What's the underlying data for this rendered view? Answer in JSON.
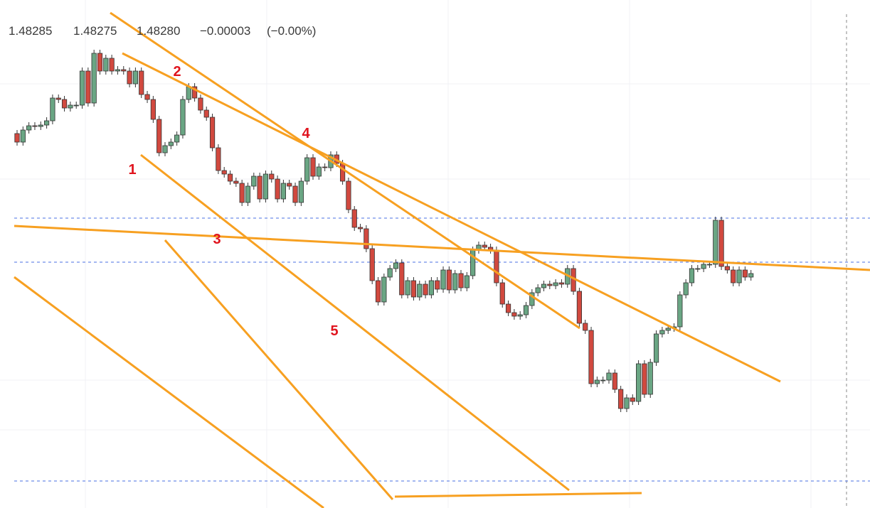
{
  "chart_data": {
    "type": "candlestick",
    "legend_values": [
      "1.48285",
      "1.48275",
      "1.48280",
      "−0.00003",
      "(−0.00%)"
    ],
    "annotations": [
      "1",
      "2",
      "3",
      "4",
      "5"
    ],
    "up_color": "#6aa684",
    "down_color": "#d1493f",
    "ylim": [
      1.4795,
      1.48665
    ],
    "price_lines": [
      1.48358,
      1.48296,
      1.47988
    ],
    "candles": [
      [
        1.48477,
        1.48482,
        1.4846,
        1.48465
      ],
      [
        1.48465,
        1.48487,
        1.4846,
        1.48482
      ],
      [
        1.48482,
        1.48493,
        1.48477,
        1.48488
      ],
      [
        1.48488,
        1.48493,
        1.48482,
        1.48487
      ],
      [
        1.48487,
        1.48494,
        1.48482,
        1.48489
      ],
      [
        1.48489,
        1.485,
        1.48484,
        1.48495
      ],
      [
        1.48495,
        1.48532,
        1.4849,
        1.48527
      ],
      [
        1.48527,
        1.48532,
        1.4852,
        1.48525
      ],
      [
        1.48525,
        1.4853,
        1.48508,
        1.48513
      ],
      [
        1.48513,
        1.48522,
        1.48508,
        1.48517
      ],
      [
        1.48517,
        1.48522,
        1.48512,
        1.48517
      ],
      [
        1.48517,
        1.4857,
        1.48512,
        1.48565
      ],
      [
        1.48565,
        1.4857,
        1.48515,
        1.4852
      ],
      [
        1.4852,
        1.48595,
        1.48515,
        1.4859
      ],
      [
        1.4859,
        1.48595,
        1.4856,
        1.48565
      ],
      [
        1.48565,
        1.48588,
        1.4856,
        1.48583
      ],
      [
        1.48583,
        1.48588,
        1.4856,
        1.48565
      ],
      [
        1.48565,
        1.48572,
        1.4856,
        1.48567
      ],
      [
        1.48567,
        1.48572,
        1.4856,
        1.48565
      ],
      [
        1.48565,
        1.4857,
        1.48542,
        1.48547
      ],
      [
        1.48547,
        1.4857,
        1.48542,
        1.48565
      ],
      [
        1.48565,
        1.4857,
        1.48527,
        1.48532
      ],
      [
        1.48532,
        1.48537,
        1.4852,
        1.48525
      ],
      [
        1.48525,
        1.4853,
        1.48492,
        1.48497
      ],
      [
        1.48497,
        1.48502,
        1.48445,
        1.4845
      ],
      [
        1.4845,
        1.48465,
        1.48445,
        1.4846
      ],
      [
        1.4846,
        1.4847,
        1.48455,
        1.48465
      ],
      [
        1.48465,
        1.4848,
        1.4846,
        1.48475
      ],
      [
        1.48475,
        1.4853,
        1.4847,
        1.48525
      ],
      [
        1.48525,
        1.48548,
        1.4852,
        1.48543
      ],
      [
        1.48543,
        1.48548,
        1.48522,
        1.48527
      ],
      [
        1.48527,
        1.48532,
        1.48505,
        1.4851
      ],
      [
        1.4851,
        1.48515,
        1.48495,
        1.485
      ],
      [
        1.485,
        1.48505,
        1.48452,
        1.48457
      ],
      [
        1.48457,
        1.48462,
        1.4842,
        1.48425
      ],
      [
        1.48425,
        1.4843,
        1.48415,
        1.4842
      ],
      [
        1.4842,
        1.48425,
        1.48405,
        1.4841
      ],
      [
        1.4841,
        1.48415,
        1.48402,
        1.48407
      ],
      [
        1.48407,
        1.48412,
        1.48375,
        1.4838
      ],
      [
        1.4838,
        1.48408,
        1.48375,
        1.48403
      ],
      [
        1.48403,
        1.48422,
        1.48398,
        1.48417
      ],
      [
        1.48417,
        1.48422,
        1.4838,
        1.48385
      ],
      [
        1.48385,
        1.48425,
        1.4838,
        1.4842
      ],
      [
        1.4842,
        1.48425,
        1.48408,
        1.48413
      ],
      [
        1.48413,
        1.48418,
        1.4838,
        1.48385
      ],
      [
        1.48385,
        1.48412,
        1.4838,
        1.48407
      ],
      [
        1.48407,
        1.48412,
        1.48398,
        1.48403
      ],
      [
        1.48403,
        1.48408,
        1.48375,
        1.4838
      ],
      [
        1.4838,
        1.48415,
        1.48375,
        1.4841
      ],
      [
        1.4841,
        1.48448,
        1.48405,
        1.48443
      ],
      [
        1.48443,
        1.48448,
        1.48412,
        1.48417
      ],
      [
        1.48417,
        1.48435,
        1.48412,
        1.4843
      ],
      [
        1.4843,
        1.48435,
        1.48424,
        1.48429
      ],
      [
        1.48429,
        1.48452,
        1.48424,
        1.48447
      ],
      [
        1.48447,
        1.48452,
        1.4843,
        1.48435
      ],
      [
        1.48435,
        1.4844,
        1.48405,
        1.4841
      ],
      [
        1.4841,
        1.48415,
        1.48365,
        1.4837
      ],
      [
        1.4837,
        1.48375,
        1.4834,
        1.48345
      ],
      [
        1.48345,
        1.4835,
        1.48338,
        1.48343
      ],
      [
        1.48343,
        1.48348,
        1.4831,
        1.48315
      ],
      [
        1.48315,
        1.4832,
        1.48265,
        1.4827
      ],
      [
        1.4827,
        1.48275,
        1.48235,
        1.4824
      ],
      [
        1.4824,
        1.4828,
        1.48235,
        1.48275
      ],
      [
        1.48275,
        1.48292,
        1.4827,
        1.48287
      ],
      [
        1.48287,
        1.483,
        1.48282,
        1.48295
      ],
      [
        1.48295,
        1.483,
        1.48245,
        1.4825
      ],
      [
        1.4825,
        1.48275,
        1.48245,
        1.4827
      ],
      [
        1.4827,
        1.48275,
        1.48242,
        1.48247
      ],
      [
        1.48247,
        1.4827,
        1.48242,
        1.48265
      ],
      [
        1.48265,
        1.4827,
        1.48245,
        1.4825
      ],
      [
        1.4825,
        1.48275,
        1.48245,
        1.4827
      ],
      [
        1.4827,
        1.48275,
        1.48253,
        1.48258
      ],
      [
        1.48258,
        1.4829,
        1.48253,
        1.48285
      ],
      [
        1.48285,
        1.4829,
        1.48252,
        1.48257
      ],
      [
        1.48257,
        1.48285,
        1.48252,
        1.4828
      ],
      [
        1.4828,
        1.48285,
        1.48255,
        1.4826
      ],
      [
        1.4826,
        1.48282,
        1.48255,
        1.48277
      ],
      [
        1.48277,
        1.48318,
        1.48272,
        1.48313
      ],
      [
        1.48313,
        1.48325,
        1.48308,
        1.4832
      ],
      [
        1.4832,
        1.48325,
        1.48312,
        1.48317
      ],
      [
        1.48317,
        1.48322,
        1.48308,
        1.48313
      ],
      [
        1.48313,
        1.48318,
        1.48262,
        1.48267
      ],
      [
        1.48267,
        1.48272,
        1.48232,
        1.48237
      ],
      [
        1.48237,
        1.48242,
        1.4822,
        1.48225
      ],
      [
        1.48225,
        1.4823,
        1.48215,
        1.4822
      ],
      [
        1.4822,
        1.48227,
        1.48215,
        1.48222
      ],
      [
        1.48222,
        1.4824,
        1.48217,
        1.48235
      ],
      [
        1.48235,
        1.48258,
        1.4823,
        1.48253
      ],
      [
        1.48253,
        1.48265,
        1.48248,
        1.4826
      ],
      [
        1.4826,
        1.4827,
        1.48255,
        1.48265
      ],
      [
        1.48265,
        1.4827,
        1.48258,
        1.48263
      ],
      [
        1.48263,
        1.48272,
        1.48258,
        1.48267
      ],
      [
        1.48267,
        1.48272,
        1.4826,
        1.48265
      ],
      [
        1.48265,
        1.48292,
        1.4826,
        1.48287
      ],
      [
        1.48287,
        1.48292,
        1.4825,
        1.48255
      ],
      [
        1.48255,
        1.4826,
        1.48205,
        1.4821
      ],
      [
        1.4821,
        1.48215,
        1.48195,
        1.482
      ],
      [
        1.482,
        1.48205,
        1.4812,
        1.48125
      ],
      [
        1.48125,
        1.48135,
        1.4812,
        1.4813
      ],
      [
        1.4813,
        1.48135,
        1.48125,
        1.4813
      ],
      [
        1.4813,
        1.48145,
        1.48125,
        1.4814
      ],
      [
        1.4814,
        1.48145,
        1.48112,
        1.48117
      ],
      [
        1.48117,
        1.48122,
        1.48085,
        1.4809
      ],
      [
        1.4809,
        1.4811,
        1.48085,
        1.48105
      ],
      [
        1.48105,
        1.4811,
        1.48095,
        1.481
      ],
      [
        1.481,
        1.48158,
        1.48095,
        1.48153
      ],
      [
        1.48153,
        1.48158,
        1.48105,
        1.4811
      ],
      [
        1.4811,
        1.4816,
        1.48105,
        1.48155
      ],
      [
        1.48155,
        1.482,
        1.4815,
        1.48195
      ],
      [
        1.48195,
        1.48205,
        1.4819,
        1.482
      ],
      [
        1.482,
        1.48208,
        1.48195,
        1.48203
      ],
      [
        1.48203,
        1.4821,
        1.48198,
        1.48205
      ],
      [
        1.48205,
        1.48255,
        1.482,
        1.4825
      ],
      [
        1.4825,
        1.48272,
        1.48245,
        1.48267
      ],
      [
        1.48267,
        1.48292,
        1.48262,
        1.48287
      ],
      [
        1.48287,
        1.48292,
        1.48282,
        1.48287
      ],
      [
        1.48287,
        1.48298,
        1.48282,
        1.48293
      ],
      [
        1.48293,
        1.48298,
        1.48288,
        1.48293
      ],
      [
        1.48293,
        1.4836,
        1.48288,
        1.48355
      ],
      [
        1.48355,
        1.4836,
        1.48285,
        1.4829
      ],
      [
        1.4829,
        1.48295,
        1.4828,
        1.48285
      ],
      [
        1.48285,
        1.4829,
        1.48262,
        1.48267
      ],
      [
        1.48267,
        1.4829,
        1.48262,
        1.48285
      ],
      [
        1.48285,
        1.4829,
        1.4827,
        1.48275
      ],
      [
        1.48275,
        1.48285,
        1.4827,
        1.4828
      ]
    ]
  }
}
